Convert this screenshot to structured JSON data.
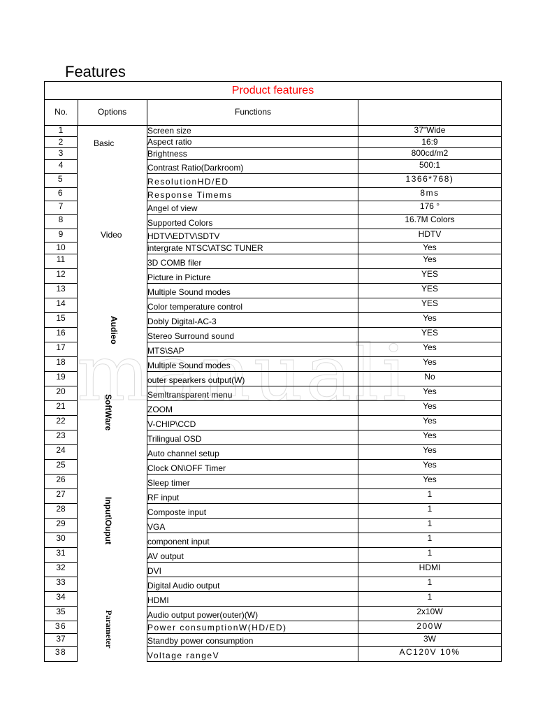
{
  "title": "Features",
  "table_title": "Product features",
  "headers": {
    "no": "No.",
    "options": "Options",
    "functions": "Functions",
    "value": ""
  },
  "categories": [
    "Basic",
    "Video",
    "Audieo",
    "SoftWare",
    "Input\\Ouput",
    "Parameter"
  ],
  "watermark": "manuali",
  "rows": [
    [
      "1",
      "Screen size",
      "37\"Wide"
    ],
    [
      "2",
      "Aspect ratio",
      "16:9"
    ],
    [
      "3",
      "Brightness",
      "800cd/m2"
    ],
    [
      "4",
      "Contrast Ratio(Darkroom)",
      "500:1"
    ],
    [
      "5",
      "ResolutionHD/ED",
      "1366*768)"
    ],
    [
      "6",
      "Response Timems",
      "8ms"
    ],
    [
      "7",
      "Angel of view",
      "176 °"
    ],
    [
      "8",
      "Supported Colors",
      "16.7M Colors"
    ],
    [
      "9",
      "HDTV\\EDTV\\SDTV",
      "HDTV"
    ],
    [
      "10",
      "intergrate NTSC\\ATSC TUNER",
      "Yes"
    ],
    [
      "11",
      "3D COMB filer",
      "Yes"
    ],
    [
      "12",
      "Picture in Picture",
      "YES"
    ],
    [
      "13",
      "Multiple Sound modes",
      "YES"
    ],
    [
      "14",
      "Color temperature control",
      "YES"
    ],
    [
      "15",
      "Dobly Digital-AC-3",
      "Yes"
    ],
    [
      "16",
      "Stereo Surround sound",
      "YES"
    ],
    [
      "17",
      "MTS\\SAP",
      "Yes"
    ],
    [
      "18",
      "Multiple Sound modes",
      "Yes"
    ],
    [
      "19",
      "outer spearkers output(W)",
      "No"
    ],
    [
      "20",
      "Semltransparent menu",
      "Yes"
    ],
    [
      "21",
      "ZOOM",
      "Yes"
    ],
    [
      "22",
      "V-CHIP\\CCD",
      "Yes"
    ],
    [
      "23",
      "Trilingual OSD",
      "Yes"
    ],
    [
      "24",
      "Auto channel setup",
      "Yes"
    ],
    [
      "25",
      "Clock ON\\OFF Timer",
      "Yes"
    ],
    [
      "26",
      "Sleep timer",
      "Yes"
    ],
    [
      "27",
      "RF input",
      "1"
    ],
    [
      "28",
      "Composte input",
      "1"
    ],
    [
      "29",
      "VGA",
      "1"
    ],
    [
      "30",
      "component input",
      "1"
    ],
    [
      "31",
      "AV output",
      "1"
    ],
    [
      "32",
      "DVI",
      "HDMI"
    ],
    [
      "33",
      "Digital Audio output",
      "1"
    ],
    [
      "34",
      "HDMI",
      "1"
    ],
    [
      "35",
      "Audio output power(outer)(W)",
      "2x10W"
    ],
    [
      "36",
      "Power consumptionW(HD/ED)",
      "200W"
    ],
    [
      "37",
      "Standby power consumption",
      "3W"
    ],
    [
      "38",
      "Voltage rangeV",
      "AC120V        10%"
    ]
  ]
}
